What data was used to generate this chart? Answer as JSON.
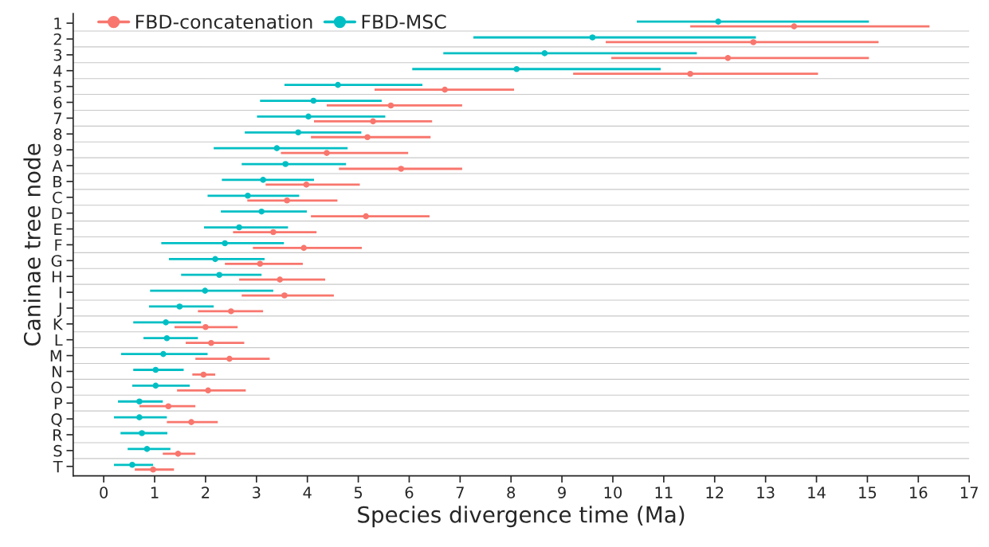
{
  "chart_data": {
    "type": "scatter",
    "orientation": "horizontal",
    "xlabel": "Species divergence time (Ma)",
    "ylabel": "Caninae tree node",
    "categories": [
      "1",
      "2",
      "3",
      "4",
      "5",
      "6",
      "7",
      "8",
      "9",
      "A",
      "B",
      "C",
      "D",
      "E",
      "F",
      "G",
      "H",
      "I",
      "J",
      "K",
      "L",
      "M",
      "N",
      "O",
      "P",
      "Q",
      "R",
      "S",
      "T"
    ],
    "series": [
      {
        "name": "FBD-concatenation",
        "color": "#f8766d",
        "values": [
          13.56,
          12.76,
          12.26,
          11.52,
          6.7,
          5.64,
          5.29,
          5.18,
          4.38,
          5.84,
          3.98,
          3.6,
          5.15,
          3.33,
          3.93,
          3.07,
          3.46,
          3.55,
          2.5,
          2.0,
          2.11,
          2.47,
          1.96,
          2.05,
          1.27,
          1.72,
          null,
          1.46,
          0.97
        ],
        "errors": [
          [
            11.52,
            16.22
          ],
          [
            9.86,
            15.22
          ],
          [
            9.97,
            15.03
          ],
          [
            9.22,
            14.03
          ],
          [
            5.32,
            8.06
          ],
          [
            4.38,
            7.04
          ],
          [
            4.13,
            6.45
          ],
          [
            4.07,
            6.42
          ],
          [
            3.48,
            5.98
          ],
          [
            4.62,
            7.04
          ],
          [
            3.18,
            5.03
          ],
          [
            2.82,
            4.59
          ],
          [
            4.07,
            6.4
          ],
          [
            2.54,
            4.18
          ],
          [
            2.93,
            5.07
          ],
          [
            2.38,
            3.91
          ],
          [
            2.66,
            4.35
          ],
          [
            2.71,
            4.52
          ],
          [
            1.85,
            3.13
          ],
          [
            1.39,
            2.63
          ],
          [
            1.61,
            2.76
          ],
          [
            1.8,
            3.26
          ],
          [
            1.74,
            2.19
          ],
          [
            1.44,
            2.79
          ],
          [
            0.7,
            1.8
          ],
          [
            1.24,
            2.24
          ],
          null,
          [
            1.16,
            1.8
          ],
          [
            0.61,
            1.38
          ]
        ]
      },
      {
        "name": "FBD-MSC",
        "color": "#00bfc4",
        "values": [
          12.07,
          9.6,
          8.66,
          8.11,
          4.6,
          4.12,
          4.02,
          3.82,
          3.4,
          3.57,
          3.13,
          2.83,
          3.1,
          2.66,
          2.38,
          2.19,
          2.27,
          1.99,
          1.49,
          1.22,
          1.24,
          1.17,
          1.02,
          1.02,
          0.7,
          0.7,
          0.75,
          0.85,
          0.56
        ],
        "errors": [
          [
            10.47,
            15.03
          ],
          [
            7.26,
            12.81
          ],
          [
            6.67,
            11.65
          ],
          [
            6.06,
            10.94
          ],
          [
            3.55,
            6.26
          ],
          [
            3.07,
            5.46
          ],
          [
            3.01,
            5.53
          ],
          [
            2.77,
            5.06
          ],
          [
            2.16,
            4.79
          ],
          [
            2.71,
            4.76
          ],
          [
            2.32,
            4.13
          ],
          [
            2.04,
            3.84
          ],
          [
            2.3,
            3.99
          ],
          [
            1.97,
            3.62
          ],
          [
            1.13,
            3.54
          ],
          [
            1.28,
            3.16
          ],
          [
            1.52,
            3.1
          ],
          [
            0.91,
            3.33
          ],
          [
            0.89,
            2.16
          ],
          [
            0.58,
            1.91
          ],
          [
            0.78,
            1.85
          ],
          [
            0.34,
            2.04
          ],
          [
            0.58,
            1.57
          ],
          [
            0.56,
            1.69
          ],
          [
            0.28,
            1.16
          ],
          [
            0.2,
            1.24
          ],
          [
            0.33,
            1.25
          ],
          [
            0.47,
            1.31
          ],
          [
            0.2,
            0.97
          ]
        ]
      }
    ],
    "xlim": [
      -0.6,
      17
    ],
    "xticks": [
      0,
      1,
      2,
      3,
      4,
      5,
      6,
      7,
      8,
      9,
      10,
      11,
      12,
      13,
      14,
      15,
      16,
      17
    ],
    "grid": "y",
    "legend": "top left",
    "marker": "circle"
  }
}
